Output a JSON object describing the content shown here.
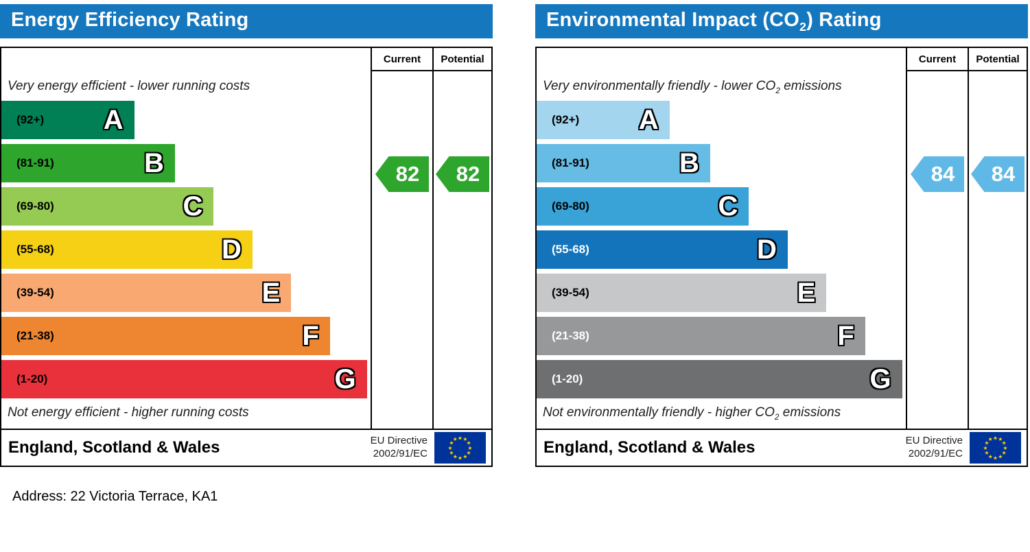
{
  "page": {
    "address_line": "Address: 22 Victoria Terrace, KA1"
  },
  "eu_flag": {
    "background": "#003399",
    "star_color": "#ffcc00"
  },
  "charts": [
    {
      "title": {
        "prefix": "Energy Efficiency Rating",
        "sub": "",
        "suffix": ""
      },
      "header_color": "#1577bd",
      "columns": {
        "current": "Current",
        "potential": "Potential"
      },
      "top_note": {
        "prefix": "Very energy efficient - lower running costs",
        "sub": "",
        "suffix": ""
      },
      "bottom_note": {
        "prefix": "Not energy efficient - higher running costs",
        "sub": "",
        "suffix": ""
      },
      "bands": [
        {
          "range": "(92+)",
          "letter": "A",
          "color": "#008054",
          "width_pct": 36,
          "label_color": "#000000"
        },
        {
          "range": "(81-91)",
          "letter": "B",
          "color": "#2ea52c",
          "width_pct": 47,
          "label_color": "#000000"
        },
        {
          "range": "(69-80)",
          "letter": "C",
          "color": "#95ca53",
          "width_pct": 57.5,
          "label_color": "#000000"
        },
        {
          "range": "(55-68)",
          "letter": "D",
          "color": "#f5d015",
          "width_pct": 68,
          "label_color": "#000000"
        },
        {
          "range": "(39-54)",
          "letter": "E",
          "color": "#f8a870",
          "width_pct": 78.5,
          "label_color": "#000000"
        },
        {
          "range": "(21-38)",
          "letter": "F",
          "color": "#ee8531",
          "width_pct": 89,
          "label_color": "#000000"
        },
        {
          "range": "(1-20)",
          "letter": "G",
          "color": "#e9313b",
          "width_pct": 99,
          "label_color": "#000000"
        }
      ],
      "current": {
        "value": "82",
        "color": "#2ea52c"
      },
      "potential": {
        "value": "82",
        "color": "#2ea52c"
      },
      "footer": {
        "region": "England, Scotland & Wales",
        "directive_line1": "EU Directive",
        "directive_line2": "2002/91/EC"
      }
    },
    {
      "title": {
        "prefix": "Environmental Impact (CO",
        "sub": "2",
        "suffix": ") Rating"
      },
      "header_color": "#1577bd",
      "columns": {
        "current": "Current",
        "potential": "Potential"
      },
      "top_note": {
        "prefix": "Very environmentally friendly - lower CO",
        "sub": "2",
        "suffix": " emissions"
      },
      "bottom_note": {
        "prefix": "Not environmentally friendly - higher CO",
        "sub": "2",
        "suffix": " emissions"
      },
      "bands": [
        {
          "range": "(92+)",
          "letter": "A",
          "color": "#a3d5ee",
          "width_pct": 36,
          "label_color": "#000000"
        },
        {
          "range": "(81-91)",
          "letter": "B",
          "color": "#66bce5",
          "width_pct": 47,
          "label_color": "#000000"
        },
        {
          "range": "(69-80)",
          "letter": "C",
          "color": "#39a3d8",
          "width_pct": 57.5,
          "label_color": "#000000"
        },
        {
          "range": "(55-68)",
          "letter": "D",
          "color": "#1374bc",
          "width_pct": 68,
          "label_color": "#ffffff"
        },
        {
          "range": "(39-54)",
          "letter": "E",
          "color": "#c6c7c9",
          "width_pct": 78.5,
          "label_color": "#000000"
        },
        {
          "range": "(21-38)",
          "letter": "F",
          "color": "#97989a",
          "width_pct": 89,
          "label_color": "#ffffff"
        },
        {
          "range": "(1-20)",
          "letter": "G",
          "color": "#6e6f71",
          "width_pct": 99,
          "label_color": "#ffffff"
        }
      ],
      "current": {
        "value": "84",
        "color": "#5fb8e5"
      },
      "potential": {
        "value": "84",
        "color": "#5fb8e5"
      },
      "footer": {
        "region": "England, Scotland & Wales",
        "directive_line1": "EU Directive",
        "directive_line2": "2002/91/EC"
      }
    }
  ],
  "chart_data": [
    {
      "type": "bar",
      "title": "Energy Efficiency Rating",
      "categories": [
        "A (92+)",
        "B (81-91)",
        "C (69-80)",
        "D (55-68)",
        "E (39-54)",
        "F (21-38)",
        "G (1-20)"
      ],
      "band_colors": [
        "#008054",
        "#2ea52c",
        "#95ca53",
        "#f5d015",
        "#f8a870",
        "#ee8531",
        "#e9313b"
      ],
      "series": [
        {
          "name": "Current",
          "values": [
            82
          ]
        },
        {
          "name": "Potential",
          "values": [
            82
          ]
        }
      ],
      "annotations": [
        "Very energy efficient - lower running costs",
        "Not energy efficient - higher running costs",
        "England, Scotland & Wales",
        "EU Directive 2002/91/EC"
      ],
      "value_range": [
        1,
        100
      ]
    },
    {
      "type": "bar",
      "title": "Environmental Impact (CO2) Rating",
      "categories": [
        "A (92+)",
        "B (81-91)",
        "C (69-80)",
        "D (55-68)",
        "E (39-54)",
        "F (21-38)",
        "G (1-20)"
      ],
      "band_colors": [
        "#a3d5ee",
        "#66bce5",
        "#39a3d8",
        "#1374bc",
        "#c6c7c9",
        "#97989a",
        "#6e6f71"
      ],
      "series": [
        {
          "name": "Current",
          "values": [
            84
          ]
        },
        {
          "name": "Potential",
          "values": [
            84
          ]
        }
      ],
      "annotations": [
        "Very environmentally friendly - lower CO2 emissions",
        "Not environmentally friendly - higher CO2 emissions",
        "England, Scotland & Wales",
        "EU Directive 2002/91/EC"
      ],
      "value_range": [
        1,
        100
      ]
    }
  ]
}
